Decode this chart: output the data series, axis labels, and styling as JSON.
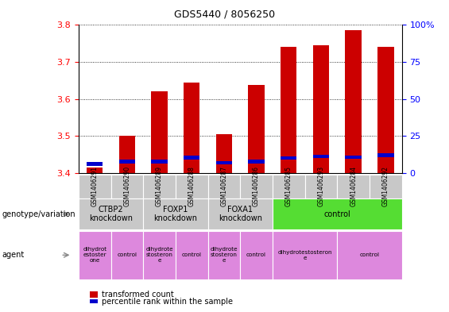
{
  "title": "GDS5440 / 8056250",
  "samples": [
    "GSM1406291",
    "GSM1406290",
    "GSM1406289",
    "GSM1406288",
    "GSM1406287",
    "GSM1406286",
    "GSM1406285",
    "GSM1406293",
    "GSM1406284",
    "GSM1406292"
  ],
  "red_values": [
    3.415,
    3.502,
    3.62,
    3.645,
    3.505,
    3.638,
    3.74,
    3.745,
    3.785,
    3.742
  ],
  "blue_values": [
    3.425,
    3.432,
    3.432,
    3.442,
    3.428,
    3.431,
    3.441,
    3.445,
    3.443,
    3.448
  ],
  "ylim_left": [
    3.4,
    3.8
  ],
  "ylim_right": [
    0,
    100
  ],
  "yticks_left": [
    3.4,
    3.5,
    3.6,
    3.7,
    3.8
  ],
  "yticks_right": [
    0,
    25,
    50,
    75,
    100
  ],
  "genotype_groups": [
    {
      "label": "CTBP2\nknockdown",
      "start": 0,
      "end": 2,
      "color": "#c8c8c8"
    },
    {
      "label": "FOXP1\nknockdown",
      "start": 2,
      "end": 4,
      "color": "#c8c8c8"
    },
    {
      "label": "FOXA1\nknockdown",
      "start": 4,
      "end": 6,
      "color": "#c8c8c8"
    },
    {
      "label": "control",
      "start": 6,
      "end": 10,
      "color": "#55dd33"
    }
  ],
  "agent_groups": [
    {
      "label": "dihydrot\nestoster\none",
      "start": 0,
      "end": 1,
      "color": "#dd88dd"
    },
    {
      "label": "control",
      "start": 1,
      "end": 2,
      "color": "#dd88dd"
    },
    {
      "label": "dihydrote\nstosteron\ne",
      "start": 2,
      "end": 3,
      "color": "#dd88dd"
    },
    {
      "label": "control",
      "start": 3,
      "end": 4,
      "color": "#dd88dd"
    },
    {
      "label": "dihydrote\nstosteron\ne",
      "start": 4,
      "end": 5,
      "color": "#dd88dd"
    },
    {
      "label": "control",
      "start": 5,
      "end": 6,
      "color": "#dd88dd"
    },
    {
      "label": "dihydrotestosteron\ne",
      "start": 6,
      "end": 8,
      "color": "#dd88dd"
    },
    {
      "label": "control",
      "start": 8,
      "end": 10,
      "color": "#dd88dd"
    }
  ],
  "bar_width": 0.5,
  "bar_color_red": "#cc0000",
  "bar_color_blue": "#0000cc",
  "baseline": 3.4,
  "legend_red": "transformed count",
  "legend_blue": "percentile rank within the sample",
  "label_genotype": "genotype/variation",
  "label_agent": "agent",
  "sample_box_color": "#c8c8c8"
}
